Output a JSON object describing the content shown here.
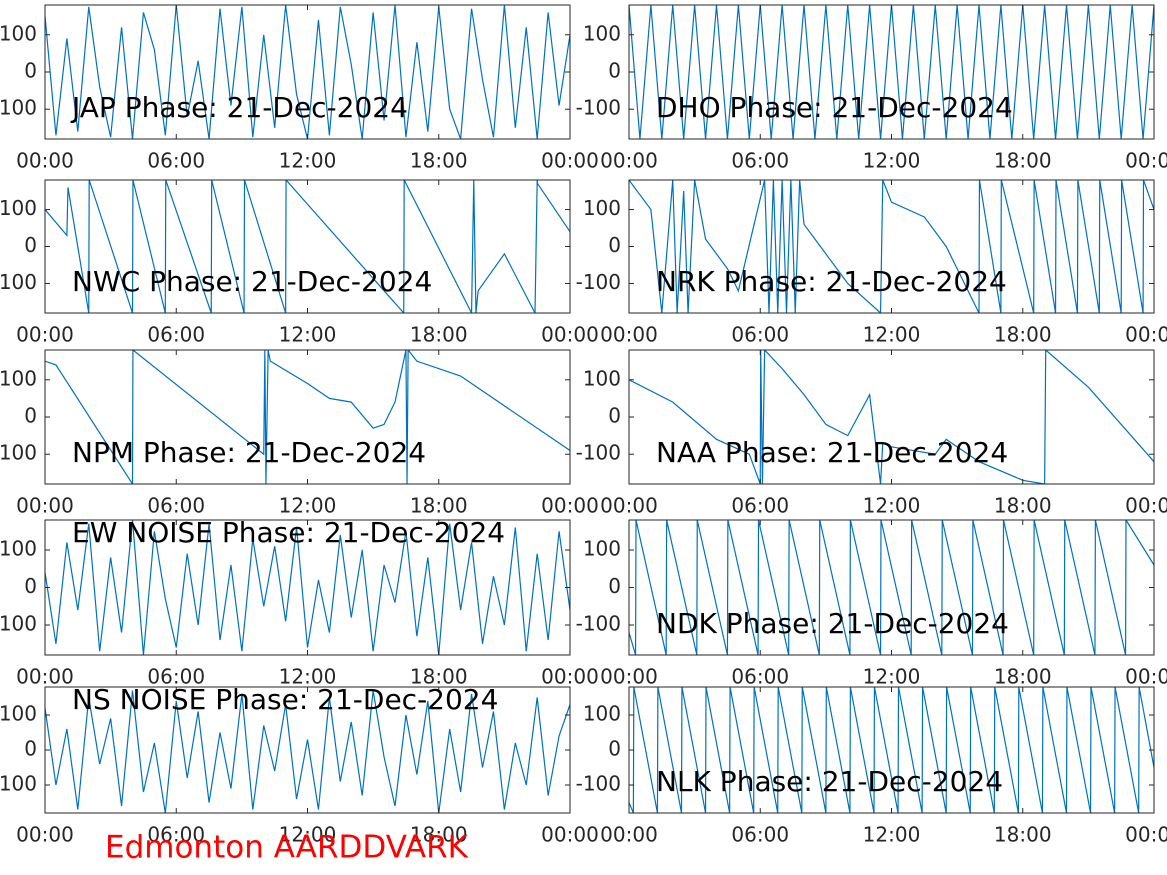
{
  "footer": "Edmonton AARDDVARK",
  "chart_data": [
    {
      "type": "line",
      "title": "JAP Phase: 21-Dec-2024",
      "color": "#0072bd",
      "xlim": [
        0,
        24
      ],
      "ylim": [
        -180,
        180
      ],
      "xticks": [
        {
          "value": 0,
          "label": "00:00"
        },
        {
          "value": 6,
          "label": "06:00"
        },
        {
          "value": 12,
          "label": "12:00"
        },
        {
          "value": 18,
          "label": "18:00"
        },
        {
          "value": 24,
          "label": "00:00"
        }
      ],
      "yticks": [
        -100,
        0,
        100
      ],
      "x": [
        0,
        0.5,
        1,
        1.5,
        2,
        2.5,
        3,
        3.5,
        4,
        4.5,
        5,
        5.5,
        6,
        6.5,
        7,
        7.5,
        8,
        8.5,
        9,
        9.5,
        10,
        10.5,
        11,
        11.5,
        12,
        12.5,
        13,
        13.5,
        14,
        14.5,
        15,
        15.5,
        16,
        16.5,
        17,
        17.5,
        18,
        18.5,
        19,
        19.5,
        20,
        20.5,
        21,
        21.5,
        22,
        22.5,
        23,
        23.5,
        24
      ],
      "values": [
        150,
        -170,
        90,
        -160,
        175,
        -40,
        -175,
        120,
        -180,
        160,
        60,
        -170,
        180,
        -120,
        30,
        -180,
        170,
        -90,
        175,
        -175,
        100,
        -150,
        180,
        -60,
        -180,
        140,
        -170,
        175,
        20,
        -180,
        160,
        -130,
        180,
        -175,
        80,
        -160,
        175,
        -100,
        -180,
        170,
        -20,
        -175,
        180,
        -150,
        120,
        -180,
        160,
        -90,
        100
      ]
    },
    {
      "type": "line",
      "title": "DHO Phase: 21-Dec-2024",
      "color": "#0072bd",
      "xlim": [
        0,
        24
      ],
      "ylim": [
        -180,
        180
      ],
      "xticks": [
        {
          "value": 0,
          "label": "00:00"
        },
        {
          "value": 6,
          "label": "06:00"
        },
        {
          "value": 12,
          "label": "12:00"
        },
        {
          "value": 18,
          "label": "18:00"
        },
        {
          "value": 24,
          "label": "00:00"
        }
      ],
      "yticks": [
        -100,
        0,
        100
      ],
      "x": [
        0,
        0.5,
        1,
        1.5,
        2,
        2.5,
        3,
        3.5,
        4,
        4.5,
        5,
        5.5,
        6,
        6.5,
        7,
        7.5,
        8,
        8.5,
        9,
        9.5,
        10,
        10.5,
        11,
        11.5,
        12,
        12.5,
        13,
        13.5,
        14,
        14.5,
        15,
        15.5,
        16,
        16.5,
        17,
        17.5,
        18,
        18.5,
        19,
        19.5,
        20,
        20.5,
        21,
        21.5,
        22,
        22.5,
        23,
        23.5,
        24
      ],
      "values": [
        180,
        -180,
        180,
        -180,
        180,
        -180,
        180,
        -180,
        180,
        -180,
        180,
        -180,
        180,
        -180,
        180,
        -180,
        180,
        -180,
        180,
        -180,
        180,
        -180,
        180,
        -180,
        180,
        -180,
        180,
        -180,
        180,
        -180,
        180,
        -180,
        180,
        -180,
        180,
        -180,
        180,
        -180,
        180,
        -180,
        180,
        -180,
        180,
        -180,
        180,
        -180,
        180,
        -180,
        180
      ]
    },
    {
      "type": "line",
      "title": "NWC Phase: 21-Dec-2024",
      "color": "#0072bd",
      "xlim": [
        0,
        24
      ],
      "ylim": [
        -180,
        180
      ],
      "xticks": [
        {
          "value": 0,
          "label": "00:00"
        },
        {
          "value": 6,
          "label": "06:00"
        },
        {
          "value": 12,
          "label": "12:00"
        },
        {
          "value": 18,
          "label": "18:00"
        },
        {
          "value": 24,
          "label": "00:00"
        }
      ],
      "yticks": [
        -100,
        0,
        100
      ],
      "x": [
        0,
        1,
        1.05,
        2,
        2.02,
        4,
        4.02,
        5.5,
        5.52,
        7.6,
        7.62,
        9.1,
        9.12,
        11,
        11.02,
        16.4,
        16.42,
        19.5,
        19.6,
        19.7,
        19.8,
        21,
        22.4,
        22.5,
        22.52,
        24
      ],
      "values": [
        100,
        30,
        160,
        -180,
        180,
        -180,
        180,
        -180,
        180,
        -180,
        180,
        -180,
        180,
        -180,
        180,
        -180,
        180,
        -180,
        180,
        -180,
        -120,
        -20,
        -180,
        180,
        170,
        40
      ]
    },
    {
      "type": "line",
      "title": "NRK Phase: 21-Dec-2024",
      "color": "#0072bd",
      "xlim": [
        0,
        24
      ],
      "ylim": [
        -180,
        180
      ],
      "xticks": [
        {
          "value": 0,
          "label": "00:00"
        },
        {
          "value": 6,
          "label": "06:00"
        },
        {
          "value": 12,
          "label": "12:00"
        },
        {
          "value": 18,
          "label": "18:00"
        },
        {
          "value": 24,
          "label": "00:00"
        }
      ],
      "yticks": [
        -100,
        0,
        100
      ],
      "x": [
        0,
        1,
        1.5,
        2,
        2.2,
        2.5,
        2.7,
        3,
        3.5,
        4.5,
        5,
        6.2,
        6.4,
        6.6,
        6.8,
        7,
        7.2,
        7.4,
        7.6,
        7.8,
        8,
        9,
        10,
        11.5,
        11.6,
        12,
        13.5,
        14.5,
        16,
        16.02,
        17,
        17.02,
        18.5,
        18.52,
        19.5,
        19.52,
        20.5,
        20.52,
        21.5,
        21.52,
        22.5,
        22.52,
        23.5,
        23.52,
        24
      ],
      "values": [
        180,
        100,
        -180,
        180,
        -180,
        150,
        -180,
        180,
        20,
        -60,
        -120,
        180,
        -180,
        180,
        -180,
        180,
        -180,
        180,
        -180,
        180,
        60,
        -20,
        -100,
        -180,
        180,
        120,
        80,
        0,
        -180,
        180,
        -180,
        180,
        -180,
        180,
        -180,
        180,
        -180,
        180,
        -180,
        180,
        -180,
        180,
        -180,
        180,
        100
      ]
    },
    {
      "type": "line",
      "title": "NPM Phase: 21-Dec-2024",
      "color": "#0072bd",
      "xlim": [
        0,
        24
      ],
      "ylim": [
        -180,
        180
      ],
      "xticks": [
        {
          "value": 0,
          "label": "00:00"
        },
        {
          "value": 6,
          "label": "06:00"
        },
        {
          "value": 12,
          "label": "12:00"
        },
        {
          "value": 18,
          "label": "18:00"
        },
        {
          "value": 24,
          "label": "00:00"
        }
      ],
      "yticks": [
        -100,
        0,
        100
      ],
      "x": [
        0,
        0.5,
        4,
        4.02,
        10,
        10.05,
        10.1,
        10.2,
        10.3,
        12,
        13,
        14,
        15,
        15.5,
        16,
        16.5,
        16.55,
        16.6,
        17,
        19,
        24
      ],
      "values": [
        150,
        140,
        -180,
        180,
        -100,
        180,
        -180,
        180,
        150,
        90,
        50,
        40,
        -30,
        -20,
        40,
        180,
        -180,
        180,
        150,
        110,
        -90
      ]
    },
    {
      "type": "line",
      "title": "NAA Phase: 21-Dec-2024",
      "color": "#0072bd",
      "xlim": [
        0,
        24
      ],
      "ylim": [
        -180,
        180
      ],
      "xticks": [
        {
          "value": 0,
          "label": "00:00"
        },
        {
          "value": 6,
          "label": "06:00"
        },
        {
          "value": 12,
          "label": "12:00"
        },
        {
          "value": 18,
          "label": "18:00"
        },
        {
          "value": 24,
          "label": "00:00"
        }
      ],
      "yticks": [
        -100,
        0,
        100
      ],
      "x": [
        0,
        2,
        4,
        5.5,
        6,
        6.02,
        6.1,
        6.2,
        7,
        8,
        9,
        10,
        11,
        11.5,
        11.6,
        12,
        14,
        14.5,
        16,
        18,
        19,
        19.05,
        21,
        24
      ],
      "values": [
        100,
        40,
        -60,
        -100,
        -180,
        180,
        -180,
        180,
        130,
        60,
        -20,
        -50,
        60,
        -180,
        -70,
        -80,
        -100,
        -60,
        -120,
        -170,
        -180,
        180,
        80,
        -120
      ]
    },
    {
      "type": "line",
      "title": "EW NOISE Phase: 21-Dec-2024",
      "color": "#0072bd",
      "xlim": [
        0,
        24
      ],
      "ylim": [
        -180,
        180
      ],
      "xticks": [
        {
          "value": 0,
          "label": "00:00"
        },
        {
          "value": 6,
          "label": "06:00"
        },
        {
          "value": 12,
          "label": "12:00"
        },
        {
          "value": 18,
          "label": "18:00"
        },
        {
          "value": 24,
          "label": "00:00"
        }
      ],
      "yticks": [
        -100,
        0,
        100
      ],
      "x": [
        0,
        0.5,
        1,
        1.5,
        2,
        2.5,
        3,
        3.5,
        4,
        4.5,
        5,
        5.5,
        6,
        6.5,
        7,
        7.5,
        8,
        8.5,
        9,
        9.5,
        10,
        10.5,
        11,
        11.5,
        12,
        12.5,
        13,
        13.5,
        14,
        14.5,
        15,
        15.5,
        16,
        16.5,
        17,
        17.5,
        18,
        18.5,
        19,
        19.5,
        20,
        20.5,
        21,
        21.5,
        22,
        22.5,
        23,
        23.5,
        24
      ],
      "values": [
        40,
        -150,
        120,
        -60,
        170,
        -170,
        80,
        -120,
        180,
        -180,
        150,
        -30,
        -160,
        90,
        -100,
        170,
        -140,
        60,
        -170,
        130,
        -50,
        110,
        -90,
        160,
        -160,
        20,
        -120,
        140,
        -80,
        100,
        -170,
        60,
        -40,
        150,
        -130,
        80,
        -180,
        170,
        -60,
        120,
        -150,
        30,
        -100,
        160,
        -170,
        90,
        -140,
        150,
        -60
      ]
    },
    {
      "type": "line",
      "title": "NDK Phase: 21-Dec-2024",
      "color": "#0072bd",
      "xlim": [
        0,
        24
      ],
      "ylim": [
        -180,
        180
      ],
      "xticks": [
        {
          "value": 0,
          "label": "00:00"
        },
        {
          "value": 6,
          "label": "06:00"
        },
        {
          "value": 12,
          "label": "12:00"
        },
        {
          "value": 18,
          "label": "18:00"
        },
        {
          "value": 24,
          "label": "00:00"
        }
      ],
      "yticks": [
        -100,
        0,
        100
      ],
      "x": [
        0,
        0.3,
        0.32,
        1.7,
        1.72,
        3.1,
        3.12,
        4.5,
        4.52,
        5.9,
        5.92,
        7.3,
        7.32,
        8.7,
        8.72,
        10.1,
        10.12,
        11.5,
        11.52,
        12.9,
        12.92,
        14.3,
        14.32,
        15.7,
        15.72,
        17.1,
        17.12,
        18.5,
        18.52,
        19.9,
        19.92,
        21.3,
        21.32,
        22.7,
        22.72,
        24
      ],
      "values": [
        -120,
        -180,
        180,
        -180,
        180,
        -180,
        180,
        -180,
        180,
        -180,
        180,
        -180,
        180,
        -180,
        180,
        -180,
        180,
        -180,
        180,
        -180,
        180,
        -180,
        180,
        -180,
        180,
        -180,
        180,
        -180,
        180,
        -180,
        180,
        -180,
        180,
        -180,
        180,
        60
      ]
    },
    {
      "type": "line",
      "title": "NS NOISE Phase: 21-Dec-2024",
      "color": "#0072bd",
      "xlim": [
        0,
        24
      ],
      "ylim": [
        -180,
        180
      ],
      "xticks": [
        {
          "value": 0,
          "label": "00:00"
        },
        {
          "value": 6,
          "label": "06:00"
        },
        {
          "value": 12,
          "label": "12:00"
        },
        {
          "value": 18,
          "label": "18:00"
        },
        {
          "value": 24,
          "label": "00:00"
        }
      ],
      "yticks": [
        -100,
        0,
        100
      ],
      "x": [
        0,
        0.5,
        1,
        1.5,
        2,
        2.5,
        3,
        3.5,
        4,
        4.5,
        5,
        5.5,
        6,
        6.5,
        7,
        7.5,
        8,
        8.5,
        9,
        9.5,
        10,
        10.5,
        11,
        11.5,
        12,
        12.5,
        13,
        13.5,
        14,
        14.5,
        15,
        15.5,
        16,
        16.5,
        17,
        17.5,
        18,
        18.5,
        19,
        19.5,
        20,
        20.5,
        21,
        21.5,
        22,
        22.5,
        23,
        23.5,
        24
      ],
      "values": [
        120,
        -100,
        60,
        -170,
        150,
        -40,
        90,
        -160,
        170,
        -120,
        20,
        -180,
        140,
        -80,
        110,
        -150,
        50,
        -110,
        160,
        -170,
        70,
        -60,
        130,
        -140,
        30,
        -170,
        150,
        -90,
        80,
        -130,
        170,
        -20,
        -160,
        100,
        -70,
        140,
        -180,
        60,
        -120,
        160,
        -50,
        110,
        -170,
        20,
        -100,
        150,
        -130,
        40,
        130
      ]
    },
    {
      "type": "line",
      "title": "NLK Phase: 21-Dec-2024",
      "color": "#0072bd",
      "xlim": [
        0,
        24
      ],
      "ylim": [
        -180,
        180
      ],
      "xticks": [
        {
          "value": 0,
          "label": "00:00"
        },
        {
          "value": 6,
          "label": "06:00"
        },
        {
          "value": 12,
          "label": "12:00"
        },
        {
          "value": 18,
          "label": "18:00"
        },
        {
          "value": 24,
          "label": "00:00"
        }
      ],
      "yticks": [
        -100,
        0,
        100
      ],
      "x": [
        0,
        0.2,
        0.22,
        1.3,
        1.32,
        2.4,
        2.42,
        3.5,
        3.52,
        4.6,
        4.62,
        5.7,
        5.72,
        6.8,
        6.82,
        7.9,
        7.92,
        9,
        9.02,
        10.1,
        10.12,
        11.2,
        11.22,
        12.3,
        12.32,
        13.4,
        13.42,
        14.5,
        14.52,
        15.6,
        15.62,
        16.7,
        16.72,
        17.8,
        17.82,
        18.9,
        18.92,
        20,
        20.02,
        21.1,
        21.12,
        22.2,
        22.22,
        23.3,
        23.32,
        24
      ],
      "values": [
        -150,
        -180,
        180,
        -180,
        180,
        -180,
        180,
        -180,
        180,
        -180,
        180,
        -180,
        180,
        -180,
        180,
        -180,
        180,
        -180,
        180,
        -180,
        180,
        -180,
        180,
        -180,
        180,
        -180,
        180,
        -180,
        180,
        -180,
        180,
        -180,
        180,
        -180,
        180,
        -180,
        180,
        -180,
        180,
        -180,
        180,
        -180,
        180,
        -180,
        180,
        -50
      ]
    }
  ]
}
